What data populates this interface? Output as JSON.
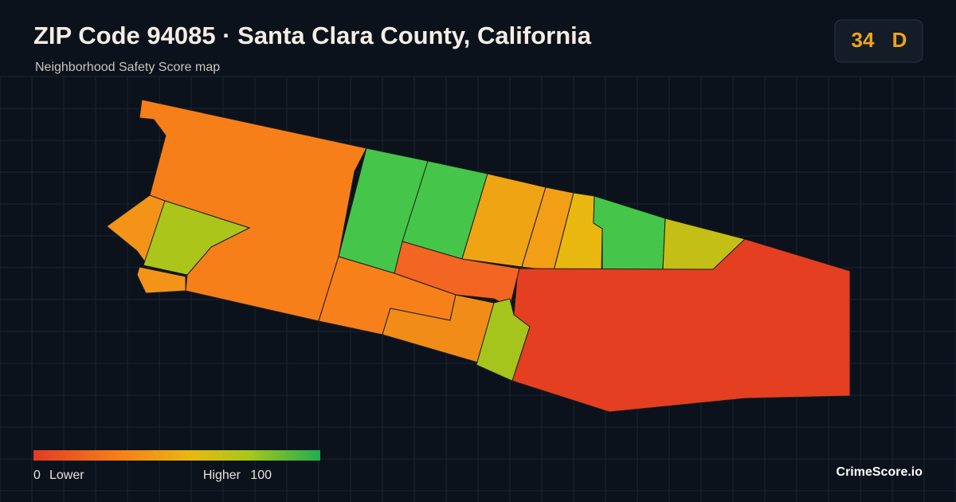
{
  "header": {
    "title": "ZIP Code 94085 · Santa Clara County, California",
    "subtitle": "Neighborhood Safety Score map"
  },
  "badge": {
    "score": 34,
    "grade": "D"
  },
  "legend": {
    "min": 0,
    "min_label": "Lower",
    "max_label": "Higher",
    "max": 100
  },
  "brand": "CrimeScore.io"
}
